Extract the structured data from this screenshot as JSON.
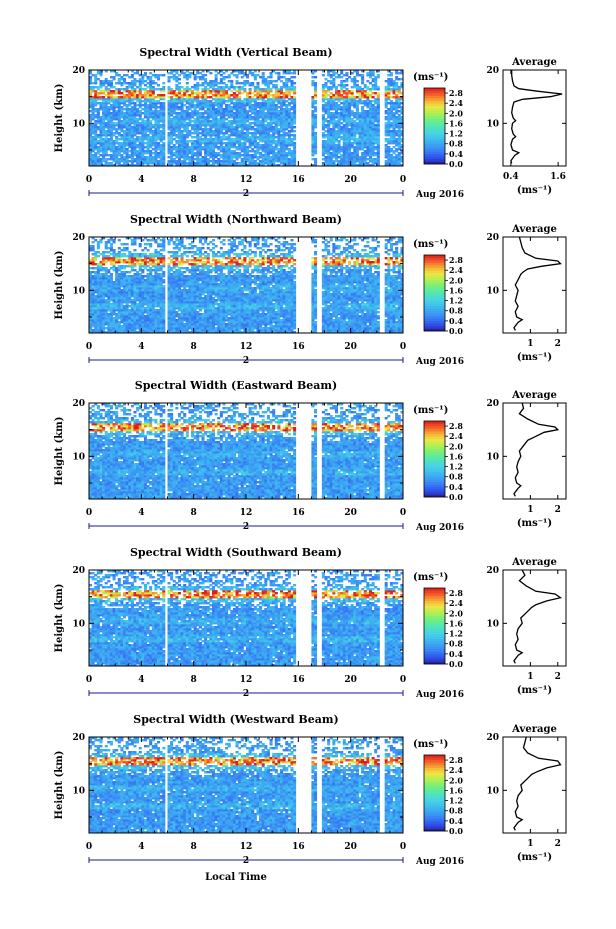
{
  "figure": {
    "xlabel": "Local Time",
    "date_label": "Aug 2016",
    "day_label": "2"
  },
  "chart_data": [
    {
      "type": "heatmap",
      "title": "Spectral Width (Vertical Beam)",
      "ylabel": "Height (km)",
      "x_ticks": [
        "0",
        "4",
        "8",
        "12",
        "16",
        "20",
        "0"
      ],
      "y_ticks": [
        "10",
        "20"
      ],
      "xlim": [
        0,
        24
      ],
      "ylim": [
        2,
        20
      ],
      "colorbar": {
        "unit": "(ms⁻¹)",
        "ticks": [
          "0.0",
          "0.4",
          "0.8",
          "1.2",
          "1.6",
          "2.0",
          "2.4",
          "2.8"
        ],
        "range": [
          0,
          3.0
        ]
      },
      "gaps_hours": [
        [
          5.7,
          5.9
        ],
        [
          15.8,
          17.0
        ],
        [
          17.4,
          17.8
        ],
        [
          22.3,
          22.6
        ]
      ],
      "tropopause_km": 15.5,
      "average": {
        "title": "Average",
        "xlabel": "(ms⁻¹)",
        "x_ticks": [
          "0.4",
          "1.6"
        ],
        "xlim": [
          0.2,
          1.8
        ],
        "y_ticks": [
          "10",
          "20"
        ],
        "profile": [
          [
            0.42,
            2.5
          ],
          [
            0.4,
            3
          ],
          [
            0.5,
            4
          ],
          [
            0.6,
            4.5
          ],
          [
            0.44,
            5
          ],
          [
            0.4,
            6
          ],
          [
            0.44,
            7
          ],
          [
            0.52,
            7.5
          ],
          [
            0.46,
            8
          ],
          [
            0.42,
            9
          ],
          [
            0.44,
            10
          ],
          [
            0.52,
            10.5
          ],
          [
            0.46,
            11
          ],
          [
            0.42,
            12
          ],
          [
            0.44,
            13
          ],
          [
            0.48,
            14
          ],
          [
            0.7,
            14.5
          ],
          [
            1.4,
            15.0
          ],
          [
            1.7,
            15.5
          ],
          [
            1.1,
            16.0
          ],
          [
            0.6,
            16.5
          ],
          [
            0.48,
            17
          ],
          [
            0.44,
            18
          ],
          [
            0.42,
            19
          ],
          [
            0.42,
            20
          ]
        ]
      }
    },
    {
      "type": "heatmap",
      "title": "Spectral Width (Northward Beam)",
      "ylabel": "Height (km)",
      "x_ticks": [
        "0",
        "4",
        "8",
        "12",
        "16",
        "20",
        "0"
      ],
      "y_ticks": [
        "10",
        "20"
      ],
      "xlim": [
        0,
        24
      ],
      "ylim": [
        2,
        20
      ],
      "colorbar": {
        "unit": "(ms⁻¹)",
        "ticks": [
          "0.0",
          "0.4",
          "0.8",
          "1.2",
          "1.6",
          "2.0",
          "2.4",
          "2.8"
        ],
        "range": [
          0,
          3.0
        ]
      },
      "gaps_hours": [
        [
          5.7,
          5.9
        ],
        [
          15.8,
          17.0
        ],
        [
          17.4,
          17.8
        ],
        [
          22.3,
          22.6
        ]
      ],
      "tropopause_km": 15.5,
      "average": {
        "title": "Average",
        "xlabel": "(ms⁻¹)",
        "x_ticks": [
          "1",
          "2"
        ],
        "xlim": [
          0,
          2.3
        ],
        "y_ticks": [
          "10",
          "20"
        ],
        "profile": [
          [
            0.45,
            2.5
          ],
          [
            0.4,
            3
          ],
          [
            0.55,
            4
          ],
          [
            0.7,
            4.5
          ],
          [
            0.5,
            5
          ],
          [
            0.45,
            6
          ],
          [
            0.55,
            7
          ],
          [
            0.45,
            8
          ],
          [
            0.5,
            9
          ],
          [
            0.55,
            10
          ],
          [
            0.45,
            11
          ],
          [
            0.55,
            12
          ],
          [
            0.65,
            13
          ],
          [
            0.75,
            13.5
          ],
          [
            0.9,
            14
          ],
          [
            1.4,
            14.5
          ],
          [
            2.1,
            15.0
          ],
          [
            2.0,
            15.5
          ],
          [
            1.2,
            16
          ],
          [
            0.8,
            17
          ],
          [
            0.7,
            18
          ],
          [
            0.65,
            19
          ],
          [
            0.6,
            20
          ]
        ]
      }
    },
    {
      "type": "heatmap",
      "title": "Spectral Width (Eastward Beam)",
      "ylabel": "Height (km)",
      "x_ticks": [
        "0",
        "4",
        "8",
        "12",
        "16",
        "20",
        "0"
      ],
      "y_ticks": [
        "10",
        "20"
      ],
      "xlim": [
        0,
        24
      ],
      "ylim": [
        2,
        20
      ],
      "colorbar": {
        "unit": "(ms⁻¹)",
        "ticks": [
          "0.0",
          "0.4",
          "0.8",
          "1.2",
          "1.6",
          "2.0",
          "2.4",
          "2.8"
        ],
        "range": [
          0,
          3.0
        ]
      },
      "gaps_hours": [
        [
          5.7,
          5.9
        ],
        [
          15.8,
          17.0
        ],
        [
          17.4,
          17.8
        ],
        [
          22.3,
          22.6
        ]
      ],
      "tropopause_km": 15.5,
      "average": {
        "title": "Average",
        "xlabel": "(ms⁻¹)",
        "x_ticks": [
          "1",
          "2"
        ],
        "xlim": [
          0,
          2.3
        ],
        "y_ticks": [
          "10",
          "20"
        ],
        "profile": [
          [
            0.45,
            2.5
          ],
          [
            0.4,
            3
          ],
          [
            0.55,
            4
          ],
          [
            0.65,
            4.5
          ],
          [
            0.5,
            5
          ],
          [
            0.45,
            6
          ],
          [
            0.55,
            7
          ],
          [
            0.5,
            8
          ],
          [
            0.55,
            9
          ],
          [
            0.65,
            10
          ],
          [
            0.6,
            11
          ],
          [
            0.75,
            12
          ],
          [
            0.9,
            13
          ],
          [
            1.1,
            13.5
          ],
          [
            1.5,
            14.5
          ],
          [
            2.0,
            15.0
          ],
          [
            1.9,
            15.5
          ],
          [
            1.3,
            16
          ],
          [
            0.9,
            17
          ],
          [
            0.6,
            18
          ],
          [
            0.75,
            19
          ],
          [
            0.7,
            20
          ]
        ]
      }
    },
    {
      "type": "heatmap",
      "title": "Spectral Width (Southward Beam)",
      "ylabel": "Height (km)",
      "x_ticks": [
        "0",
        "4",
        "8",
        "12",
        "16",
        "20",
        "0"
      ],
      "y_ticks": [
        "10",
        "20"
      ],
      "xlim": [
        0,
        24
      ],
      "ylim": [
        2,
        20
      ],
      "colorbar": {
        "unit": "(ms⁻¹)",
        "ticks": [
          "0.0",
          "0.4",
          "0.8",
          "1.2",
          "1.6",
          "2.0",
          "2.4",
          "2.8"
        ],
        "range": [
          0,
          3.0
        ]
      },
      "gaps_hours": [
        [
          5.7,
          5.9
        ],
        [
          15.8,
          17.0
        ],
        [
          17.4,
          17.8
        ],
        [
          22.3,
          22.6
        ]
      ],
      "tropopause_km": 15.5,
      "average": {
        "title": "Average",
        "xlabel": "(ms⁻¹)",
        "x_ticks": [
          "1",
          "2"
        ],
        "xlim": [
          0,
          2.3
        ],
        "y_ticks": [
          "10",
          "20"
        ],
        "profile": [
          [
            0.45,
            2.5
          ],
          [
            0.4,
            3
          ],
          [
            0.55,
            4
          ],
          [
            0.7,
            4.5
          ],
          [
            0.5,
            5
          ],
          [
            0.45,
            6
          ],
          [
            0.55,
            7
          ],
          [
            0.5,
            8
          ],
          [
            0.55,
            9
          ],
          [
            0.7,
            10
          ],
          [
            0.65,
            11
          ],
          [
            0.85,
            12
          ],
          [
            1.05,
            13
          ],
          [
            1.2,
            13.5
          ],
          [
            1.6,
            14.2
          ],
          [
            2.1,
            14.8
          ],
          [
            1.9,
            15.5
          ],
          [
            1.2,
            16
          ],
          [
            0.85,
            17
          ],
          [
            0.6,
            18
          ],
          [
            0.8,
            19
          ],
          [
            0.7,
            20
          ]
        ]
      }
    },
    {
      "type": "heatmap",
      "title": "Spectral Width (Westward Beam)",
      "ylabel": "Height (km)",
      "x_ticks": [
        "0",
        "4",
        "8",
        "12",
        "16",
        "20",
        "0"
      ],
      "y_ticks": [
        "10",
        "20"
      ],
      "xlim": [
        0,
        24
      ],
      "ylim": [
        2,
        20
      ],
      "colorbar": {
        "unit": "(ms⁻¹)",
        "ticks": [
          "0.0",
          "0.4",
          "0.8",
          "1.2",
          "1.6",
          "2.0",
          "2.4",
          "2.8"
        ],
        "range": [
          0,
          3.0
        ]
      },
      "gaps_hours": [
        [
          5.7,
          5.9
        ],
        [
          15.8,
          17.0
        ],
        [
          17.4,
          17.8
        ],
        [
          22.3,
          22.6
        ]
      ],
      "tropopause_km": 15.5,
      "average": {
        "title": "Average",
        "xlabel": "(ms⁻¹)",
        "x_ticks": [
          "1",
          "2"
        ],
        "xlim": [
          0,
          2.3
        ],
        "y_ticks": [
          "10",
          "20"
        ],
        "profile": [
          [
            0.45,
            2.5
          ],
          [
            0.4,
            3
          ],
          [
            0.55,
            4
          ],
          [
            0.7,
            4.5
          ],
          [
            0.5,
            5
          ],
          [
            0.45,
            6
          ],
          [
            0.55,
            7
          ],
          [
            0.5,
            8
          ],
          [
            0.55,
            9
          ],
          [
            0.7,
            10
          ],
          [
            0.65,
            11
          ],
          [
            0.85,
            12
          ],
          [
            1.05,
            13
          ],
          [
            1.25,
            13.5
          ],
          [
            1.6,
            14.2
          ],
          [
            2.1,
            14.8
          ],
          [
            2.0,
            15.5
          ],
          [
            1.3,
            16
          ],
          [
            0.9,
            17
          ],
          [
            0.75,
            18
          ],
          [
            0.8,
            19
          ],
          [
            0.85,
            20
          ]
        ]
      }
    }
  ]
}
